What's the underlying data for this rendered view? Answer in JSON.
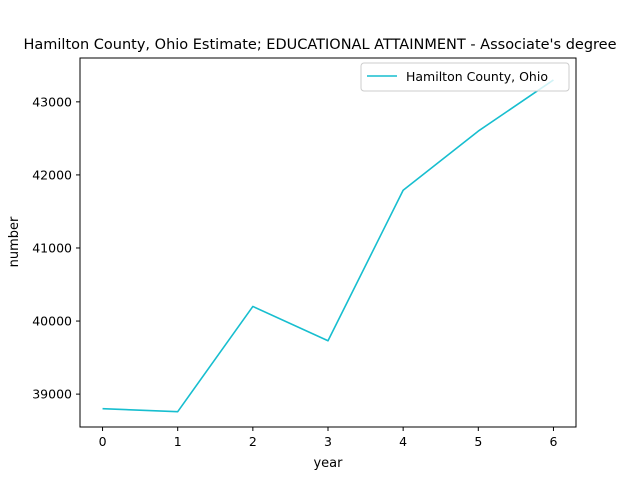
{
  "chart_data": {
    "type": "line",
    "title": "Hamilton County, Ohio Estimate; EDUCATIONAL ATTAINMENT - Associate's degree",
    "xlabel": "year",
    "ylabel": "number",
    "x": [
      0,
      1,
      2,
      3,
      4,
      5,
      6
    ],
    "xticks": [
      "0",
      "1",
      "2",
      "3",
      "4",
      "5",
      "6"
    ],
    "yticks": [
      "39000",
      "40000",
      "41000",
      "42000",
      "43000"
    ],
    "xlim": [
      -0.3,
      6.3
    ],
    "ylim": [
      38550,
      43600
    ],
    "series": [
      {
        "name": "Hamilton County, Ohio",
        "color": "#17becf",
        "values": [
          38800,
          38760,
          40200,
          39730,
          41790,
          42600,
          43300
        ]
      }
    ],
    "legend": "top-right",
    "grid": false
  }
}
